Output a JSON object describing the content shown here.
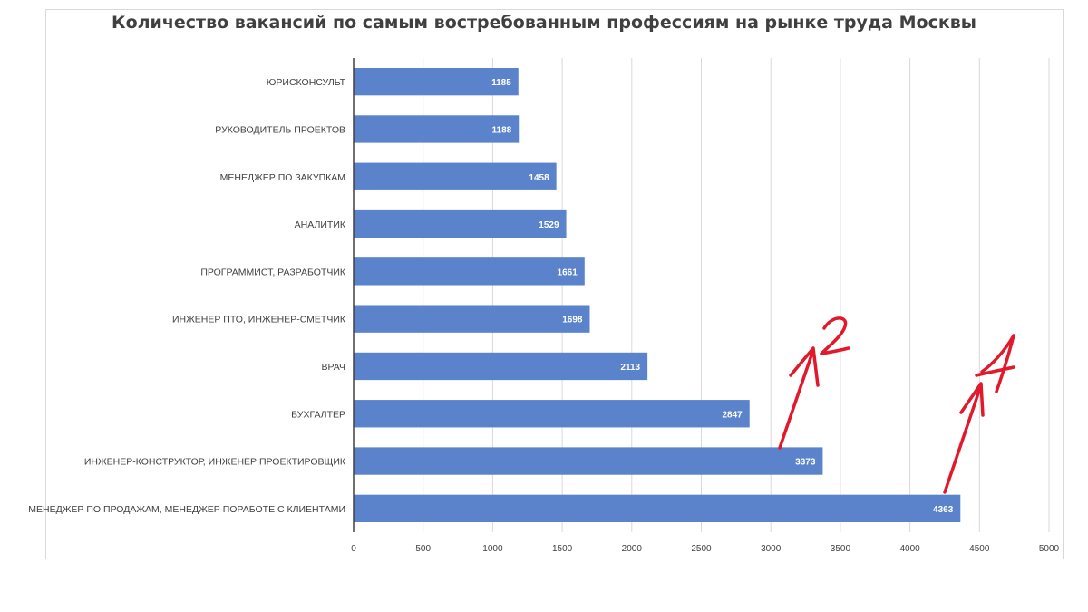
{
  "chart_data": {
    "type": "bar",
    "orientation": "horizontal",
    "title": "Количество вакансий по самым востребованным профессиям на рынке труда Москвы",
    "categories": [
      "ЮРИСКОНСУЛЬТ",
      "РУКОВОДИТЕЛЬ ПРОЕКТОВ",
      "МЕНЕДЖЕР ПО ЗАКУПКАМ",
      "АНАЛИТИК",
      "ПРОГРАММИСТ,  РАЗРАБОТЧИК",
      "ИНЖЕНЕР ПТО, ИНЖЕНЕР-СМЕТЧИК",
      "ВРАЧ",
      "БУХГАЛТЕР",
      "ИНЖЕНЕР-КОНСТРУКТОР, ИНЖЕНЕР ПРОЕКТИРОВЩИК",
      "МЕНЕДЖЕР ПО ПРОДАЖАМ, МЕНЕДЖЕР ПОРАБОТЕ С КЛИЕНТАМИ"
    ],
    "values": [
      1185,
      1188,
      1458,
      1529,
      1661,
      1698,
      2113,
      2847,
      3373,
      4363
    ],
    "xlim": [
      0,
      5000
    ],
    "xticks": [
      0,
      500,
      1000,
      1500,
      2000,
      2500,
      3000,
      3500,
      4000,
      4500,
      5000
    ],
    "grid": "vertical",
    "bar_color": "#5b83cb",
    "data_labels": "inside-end",
    "annotations": [
      {
        "text": "1",
        "target_value": 4363,
        "color": "#e0192b"
      },
      {
        "text": "2",
        "target_value": 3373,
        "color": "#e0192b"
      }
    ]
  }
}
